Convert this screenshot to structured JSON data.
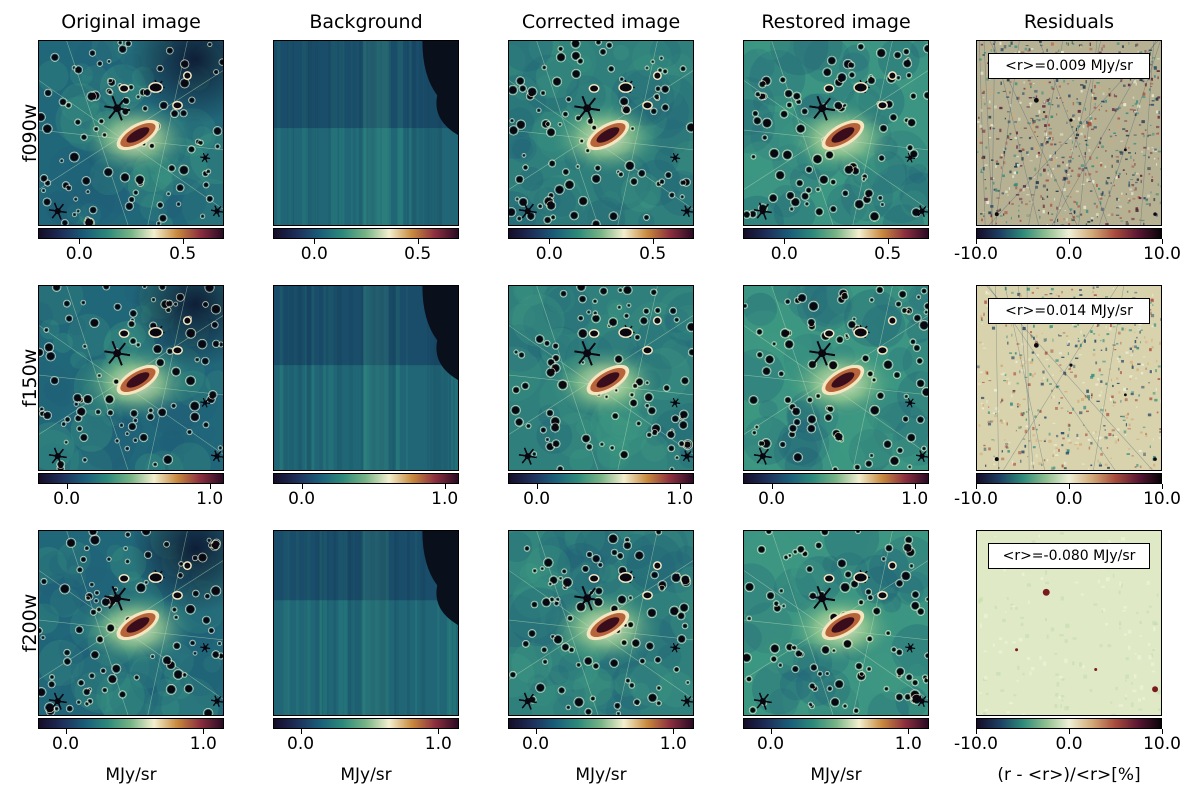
{
  "figure": {
    "columns": [
      {
        "title": "Original image"
      },
      {
        "title": "Background"
      },
      {
        "title": "Corrected image"
      },
      {
        "title": "Restored image"
      },
      {
        "title": "Residuals"
      }
    ],
    "rows": [
      {
        "label": "f090w",
        "residual_mean_text": "<r>=0.009 MJy/sr",
        "residual_texture": "high-variance",
        "flux_colorbar_max": 0.7
      },
      {
        "label": "f150w",
        "residual_mean_text": "<r>=0.014 MJy/sr",
        "residual_texture": "medium-variance",
        "flux_colorbar_max": 1.1
      },
      {
        "label": "f200w",
        "residual_mean_text": "<r>=-0.080 MJy/sr",
        "residual_texture": "low-variance",
        "flux_colorbar_max": 1.15
      }
    ],
    "flux_ticks": [
      [
        "0.0",
        "0.5"
      ],
      [
        "0.0",
        "1.0"
      ],
      [
        "0.0",
        "1.0"
      ]
    ],
    "residual_ticks": [
      "-10.0",
      "0.0",
      "10.0"
    ],
    "units": {
      "flux": "MJy/sr",
      "residual": "(r - <r>)/<r>[%]"
    },
    "colormaps": {
      "flux": [
        "#150c28",
        "#1d2f5a",
        "#1a5e7a",
        "#2d8a7a",
        "#78b486",
        "#f3efcf",
        "#c88a3e",
        "#8c2f3f",
        "#2a0a24"
      ],
      "residual": [
        "#150c28",
        "#1d3f63",
        "#2d8a7a",
        "#8fbf8f",
        "#eef0d6",
        "#d3aa77",
        "#a84c3c",
        "#5a1633",
        "#080408"
      ]
    }
  }
}
